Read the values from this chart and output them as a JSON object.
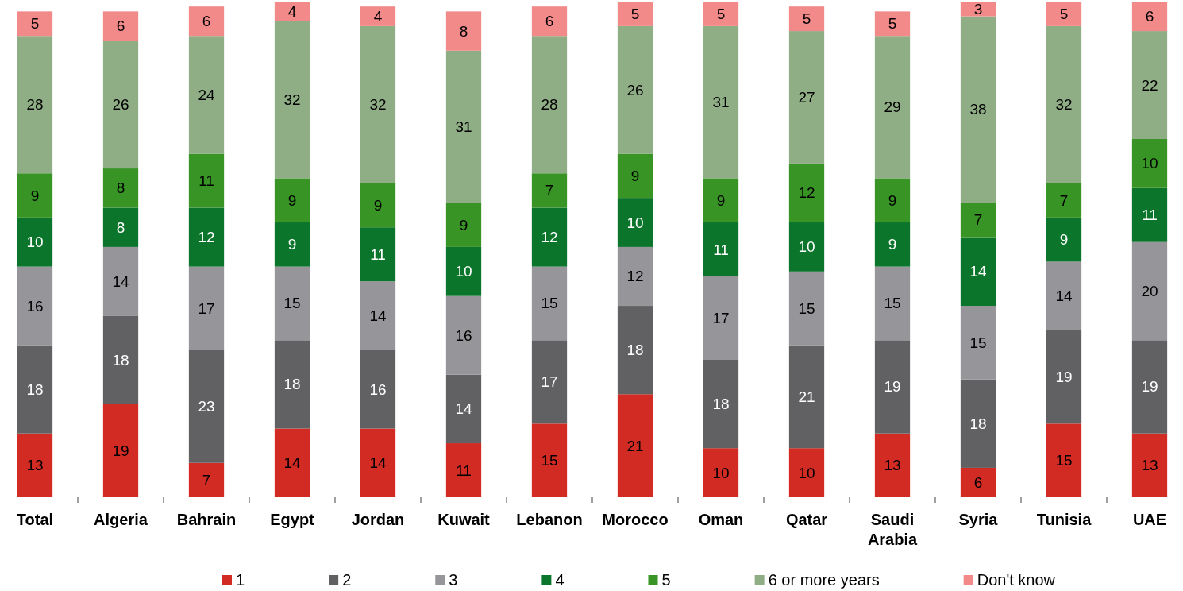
{
  "chart_data": {
    "type": "bar",
    "stacked": true,
    "data_labels": true,
    "legend": "bottom",
    "tick_labels": "x",
    "ylim": [
      0,
      101
    ],
    "categories": [
      "Total",
      "Algeria",
      "Bahrain",
      "Egypt",
      "Jordan",
      "Kuwait",
      "Lebanon",
      "Morocco",
      "Oman",
      "Qatar",
      "Saudi Arabia",
      "Syria",
      "Tunisia",
      "UAE"
    ],
    "series": [
      {
        "name": "1",
        "color": "#d22b24",
        "values": [
          13,
          19,
          7,
          14,
          14,
          11,
          15,
          21,
          10,
          10,
          13,
          6,
          15,
          13
        ]
      },
      {
        "name": "2",
        "color": "#616163",
        "values": [
          18,
          18,
          23,
          18,
          16,
          14,
          17,
          18,
          18,
          21,
          19,
          18,
          19,
          19
        ]
      },
      {
        "name": "3",
        "color": "#96969a",
        "values": [
          16,
          14,
          17,
          15,
          14,
          16,
          15,
          12,
          17,
          15,
          15,
          15,
          14,
          20
        ]
      },
      {
        "name": "4",
        "color": "#0b752b",
        "values": [
          10,
          8,
          12,
          9,
          11,
          10,
          12,
          10,
          11,
          10,
          9,
          14,
          9,
          11
        ]
      },
      {
        "name": "5",
        "color": "#389425",
        "values": [
          9,
          8,
          11,
          9,
          9,
          9,
          7,
          9,
          9,
          12,
          9,
          7,
          7,
          10
        ]
      },
      {
        "name": "6 or more years",
        "color": "#8fae85",
        "values": [
          28,
          26,
          24,
          32,
          32,
          31,
          28,
          26,
          31,
          27,
          29,
          38,
          32,
          22
        ]
      },
      {
        "name": "Don't know",
        "color": "#f28a8a",
        "values": [
          5,
          6,
          6,
          4,
          4,
          8,
          6,
          5,
          5,
          5,
          5,
          3,
          5,
          6
        ]
      }
    ]
  }
}
